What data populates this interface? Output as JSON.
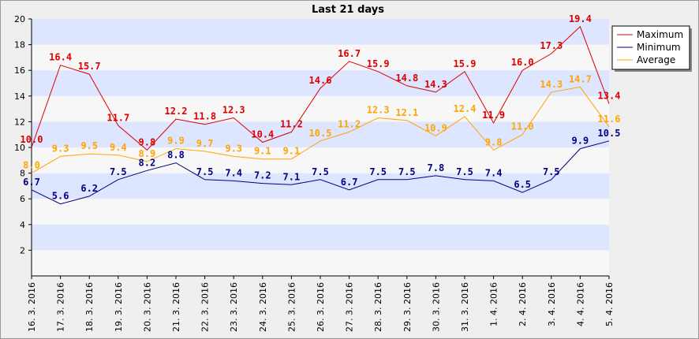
{
  "chart_data": {
    "type": "line",
    "title": "Last 21 days",
    "xlabel": "",
    "ylabel": "",
    "ylim": [
      0,
      20
    ],
    "yticks": [
      2,
      4,
      6,
      8,
      10,
      12,
      14,
      16,
      18,
      20
    ],
    "grid": "horizontal alternating bands",
    "legend_position": "top-right",
    "categories": [
      "16. 3. 2016",
      "17. 3. 2016",
      "18. 3. 2016",
      "19. 3. 2016",
      "20. 3. 2016",
      "21. 3. 2016",
      "22. 3. 2016",
      "23. 3. 2016",
      "24. 3. 2016",
      "25. 3. 2016",
      "26. 3. 2016",
      "27. 3. 2016",
      "28. 3. 2016",
      "29. 3. 2016",
      "30. 3. 2016",
      "31. 3. 2016",
      "1. 4. 2016",
      "2. 4. 2016",
      "3. 4. 2016",
      "4. 4. 2016",
      "5. 4. 2016"
    ],
    "series": [
      {
        "name": "Maximum",
        "color": "#dd0000",
        "values": [
          10.0,
          16.4,
          15.7,
          11.7,
          9.8,
          12.2,
          11.8,
          12.3,
          10.4,
          11.2,
          14.6,
          16.7,
          15.9,
          14.8,
          14.3,
          15.9,
          11.9,
          16.0,
          17.3,
          19.4,
          13.4
        ],
        "labels": [
          "10.0",
          "16.4",
          "15.7",
          "11.7",
          "9.8",
          "12.2",
          "11.8",
          "12.3",
          "10.4",
          "11.2",
          "14.6",
          "16.7",
          "15.9",
          "14.8",
          "14.3",
          "15.9",
          "11.9",
          "16.0",
          "17.3",
          "19.4",
          "13.4"
        ]
      },
      {
        "name": "Minimum",
        "color": "#000080",
        "values": [
          6.7,
          5.6,
          6.2,
          7.5,
          8.2,
          8.8,
          7.5,
          7.4,
          7.2,
          7.1,
          7.5,
          6.7,
          7.5,
          7.5,
          7.8,
          7.5,
          7.4,
          6.5,
          7.5,
          9.9,
          10.5
        ],
        "labels": [
          "6.7",
          "5.6",
          "6.2",
          "7.5",
          "8.2",
          "8.8",
          "7.5",
          "7.4",
          "7.2",
          "7.1",
          "7.5",
          "6.7",
          "7.5",
          "7.5",
          "7.8",
          "7.5",
          "7.4",
          "6.5",
          "7.5",
          "9.9",
          "10.5"
        ]
      },
      {
        "name": "Average",
        "color": "#ffa500",
        "values": [
          8.0,
          9.3,
          9.5,
          9.4,
          8.9,
          9.9,
          9.7,
          9.3,
          9.1,
          9.1,
          10.5,
          11.2,
          12.3,
          12.1,
          10.9,
          12.4,
          9.8,
          11.0,
          14.3,
          14.7,
          11.6
        ],
        "labels": [
          "8.0",
          "9.3",
          "9.5",
          "9.4",
          "8.9",
          "9.9",
          "9.7",
          "9.3",
          "9.1",
          "9.1",
          "10.5",
          "11.2",
          "12.3",
          "12.1",
          "10.9",
          "12.4",
          "9.8",
          "11.0",
          "14.3",
          "14.7",
          "11.6"
        ]
      }
    ]
  }
}
